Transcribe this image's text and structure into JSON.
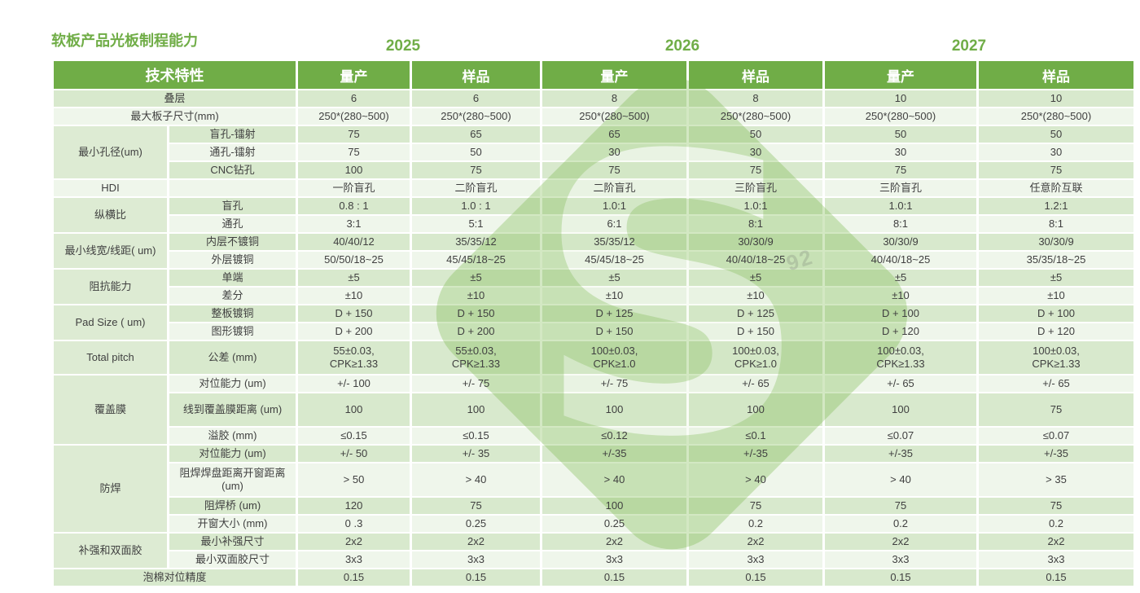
{
  "title": "软板产品光板制程能力",
  "years": [
    "2025",
    "2026",
    "2027"
  ],
  "header": {
    "feature_label": "技术特性",
    "subcols": [
      "量产",
      "样品",
      "量产",
      "样品",
      "量产",
      "样品"
    ]
  },
  "colors": {
    "accent_green": "#70ad47",
    "band_dark": "#d9e6cb",
    "band_light": "#f0f5ea",
    "group_cell": "#dfead3",
    "cell_text": "#404040"
  },
  "watermark": {
    "letter": "S",
    "faint_text": "92"
  },
  "sections": [
    {
      "kind": "span",
      "label": "叠层",
      "values": [
        "6",
        "6",
        "8",
        "8",
        "10",
        "10"
      ]
    },
    {
      "kind": "span",
      "label": "最大板子尺寸(mm)",
      "values": [
        "250*(280~500)",
        "250*(280~500)",
        "250*(280~500)",
        "250*(280~500)",
        "250*(280~500)",
        "250*(280~500)"
      ]
    },
    {
      "kind": "group",
      "label": "最小孔径(um)",
      "rows": [
        {
          "label": "盲孔-镭射",
          "values": [
            "75",
            "65",
            "65",
            "50",
            "50",
            "50"
          ]
        },
        {
          "label": "通孔-镭射",
          "values": [
            "75",
            "50",
            "30",
            "30",
            "30",
            "30"
          ]
        },
        {
          "label": "CNC钻孔",
          "values": [
            "100",
            "75",
            "75",
            "75",
            "75",
            "75"
          ]
        }
      ]
    },
    {
      "kind": "pair",
      "label": "HDI",
      "sublabel": "",
      "values": [
        "一阶盲孔",
        "二阶盲孔",
        "二阶盲孔",
        "三阶盲孔",
        "三阶盲孔",
        "任意阶互联"
      ]
    },
    {
      "kind": "group",
      "label": "纵横比",
      "rows": [
        {
          "label": "盲孔",
          "values": [
            "0.8 : 1",
            "1.0 : 1",
            "1.0:1",
            "1.0:1",
            "1.0:1",
            "1.2:1"
          ]
        },
        {
          "label": "通孔",
          "values": [
            "3:1",
            "5:1",
            "6:1",
            "8:1",
            "8:1",
            "8:1"
          ]
        }
      ]
    },
    {
      "kind": "group",
      "label": "最小线宽/线距( um)",
      "rows": [
        {
          "label": "内层不镀铜",
          "values": [
            "40/40/12",
            "35/35/12",
            "35/35/12",
            "30/30/9",
            "30/30/9",
            "30/30/9"
          ]
        },
        {
          "label": "外层镀铜",
          "values": [
            "50/50/18~25",
            "45/45/18~25",
            "45/45/18~25",
            "40/40/18~25",
            "40/40/18~25",
            "35/35/18~25"
          ]
        }
      ]
    },
    {
      "kind": "group",
      "label": "阻抗能力",
      "rows": [
        {
          "label": "单端",
          "values": [
            "±5",
            "±5",
            "±5",
            "±5",
            "±5",
            "±5"
          ]
        },
        {
          "label": "差分",
          "values": [
            "±10",
            "±10",
            "±10",
            "±10",
            "±10",
            "±10"
          ]
        }
      ]
    },
    {
      "kind": "group",
      "label": "Pad Size ( um)",
      "rows": [
        {
          "label": "整板镀铜",
          "values": [
            "D + 150",
            "D + 150",
            "D + 125",
            "D + 125",
            "D + 100",
            "D + 100"
          ]
        },
        {
          "label": "图形镀铜",
          "values": [
            "D + 200",
            "D + 200",
            "D + 150",
            "D + 150",
            "D + 120",
            "D + 120"
          ]
        }
      ]
    },
    {
      "kind": "group",
      "label": "Total pitch",
      "rows": [
        {
          "label": "公差 (mm)",
          "values": [
            "55±0.03,\nCPK≥1.33",
            "55±0.03,\nCPK≥1.33",
            "100±0.03,\nCPK≥1.0",
            "100±0.03,\nCPK≥1.0",
            "100±0.03,\nCPK≥1.33",
            "100±0.03,\nCPK≥1.33"
          ]
        }
      ]
    },
    {
      "kind": "group",
      "label": "覆盖膜",
      "rows": [
        {
          "label": "对位能力 (um)",
          "values": [
            "+/- 100",
            "+/- 75",
            "+/- 75",
            "+/- 65",
            "+/- 65",
            "+/- 65"
          ]
        },
        {
          "label": "线到覆盖膜距离 (um)",
          "values": [
            "100",
            "100",
            "100",
            "100",
            "100",
            "75"
          ]
        },
        {
          "label": "溢胶 (mm)",
          "values": [
            "≤0.15",
            "≤0.15",
            "≤0.12",
            "≤0.1",
            "≤0.07",
            "≤0.07"
          ]
        }
      ]
    },
    {
      "kind": "group",
      "label": "防焊",
      "rows": [
        {
          "label": "对位能力 (um)",
          "values": [
            "+/- 50",
            "+/- 35",
            "+/-35",
            "+/-35",
            "+/-35",
            "+/-35"
          ]
        },
        {
          "label": "阻焊焊盘距离开窗距离 (um)",
          "values": [
            "> 50",
            "> 40",
            "> 40",
            "> 40",
            "> 40",
            "> 35"
          ]
        },
        {
          "label": "阻焊桥 (um)",
          "values": [
            "120",
            "75",
            "100",
            "75",
            "75",
            "75"
          ]
        },
        {
          "label": "开窗大小 (mm)",
          "values": [
            "0 .3",
            "0.25",
            "0.25",
            "0.2",
            "0.2",
            "0.2"
          ]
        }
      ]
    },
    {
      "kind": "group",
      "label": "补强和双面胶",
      "rows": [
        {
          "label": "最小补强尺寸",
          "values": [
            "2x2",
            "2x2",
            "2x2",
            "2x2",
            "2x2",
            "2x2"
          ]
        },
        {
          "label": "最小双面胶尺寸",
          "values": [
            "3x3",
            "3x3",
            "3x3",
            "3x3",
            "3x3",
            "3x3"
          ]
        }
      ]
    },
    {
      "kind": "span",
      "label": "泡棉对位精度",
      "values": [
        "0.15",
        "0.15",
        "0.15",
        "0.15",
        "0.15",
        "0.15"
      ]
    }
  ]
}
